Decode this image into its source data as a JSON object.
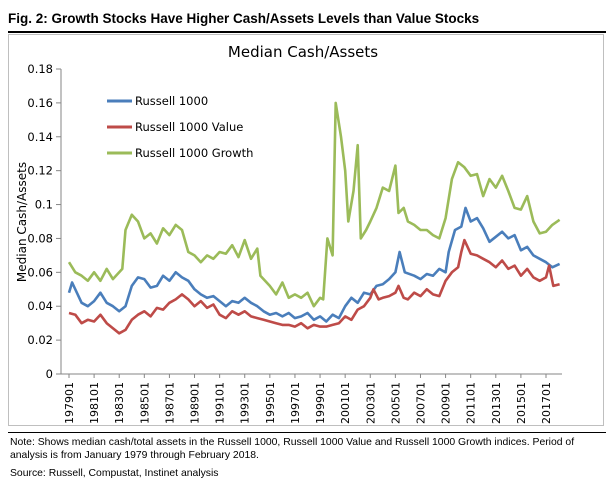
{
  "figure_title": "Fig. 2: Growth Stocks Have Higher Cash/Assets Levels than Value Stocks",
  "note": "Note: Shows median cash/total assets in the Russell 1000, Russell 1000 Value and Russell 1000 Growth indices. Period of analysis is from January 1979 through February 2018.",
  "source": "Source: Russell, Compustat, Instinet analysis",
  "chart_data": {
    "type": "line",
    "title": "Median Cash/Assets",
    "xlabel": "",
    "ylabel": "Median Cash/Assets",
    "ylim": [
      0,
      0.18
    ],
    "yticks": [
      "0",
      "0.02",
      "0.04",
      "0.06",
      "0.08",
      "0.1",
      "0.12",
      "0.14",
      "0.16",
      "0.18"
    ],
    "xticks": [
      "197901",
      "198101",
      "198301",
      "198501",
      "198701",
      "198901",
      "199101",
      "199301",
      "199501",
      "199701",
      "199901",
      "200101",
      "200301",
      "200501",
      "200701",
      "200901",
      "201101",
      "201301",
      "201501",
      "201701"
    ],
    "xrange": [
      "197901",
      "201802"
    ],
    "grid": false,
    "legend_position": "top-left",
    "series": [
      {
        "name": "Russell 1000",
        "color": "#4a7ebb",
        "points": [
          [
            "197901",
            0.048
          ],
          [
            "197904",
            0.054
          ],
          [
            "198001",
            0.042
          ],
          [
            "198007",
            0.04
          ],
          [
            "198101",
            0.043
          ],
          [
            "198107",
            0.048
          ],
          [
            "198201",
            0.042
          ],
          [
            "198207",
            0.04
          ],
          [
            "198301",
            0.037
          ],
          [
            "198307",
            0.04
          ],
          [
            "198401",
            0.052
          ],
          [
            "198407",
            0.057
          ],
          [
            "198501",
            0.056
          ],
          [
            "198507",
            0.051
          ],
          [
            "198601",
            0.052
          ],
          [
            "198607",
            0.058
          ],
          [
            "198701",
            0.055
          ],
          [
            "198707",
            0.06
          ],
          [
            "198801",
            0.057
          ],
          [
            "198807",
            0.055
          ],
          [
            "198901",
            0.05
          ],
          [
            "198907",
            0.047
          ],
          [
            "199001",
            0.045
          ],
          [
            "199007",
            0.046
          ],
          [
            "199101",
            0.043
          ],
          [
            "199107",
            0.04
          ],
          [
            "199201",
            0.043
          ],
          [
            "199207",
            0.042
          ],
          [
            "199301",
            0.045
          ],
          [
            "199307",
            0.042
          ],
          [
            "199401",
            0.04
          ],
          [
            "199407",
            0.037
          ],
          [
            "199501",
            0.035
          ],
          [
            "199507",
            0.036
          ],
          [
            "199601",
            0.034
          ],
          [
            "199607",
            0.036
          ],
          [
            "199701",
            0.033
          ],
          [
            "199707",
            0.034
          ],
          [
            "199801",
            0.036
          ],
          [
            "199807",
            0.032
          ],
          [
            "199901",
            0.034
          ],
          [
            "199907",
            0.031
          ],
          [
            "200001",
            0.035
          ],
          [
            "200007",
            0.033
          ],
          [
            "200101",
            0.04
          ],
          [
            "200107",
            0.045
          ],
          [
            "200201",
            0.042
          ],
          [
            "200207",
            0.048
          ],
          [
            "200301",
            0.047
          ],
          [
            "200307",
            0.052
          ],
          [
            "200401",
            0.053
          ],
          [
            "200407",
            0.056
          ],
          [
            "200501",
            0.06
          ],
          [
            "200505",
            0.072
          ],
          [
            "200510",
            0.06
          ],
          [
            "200607",
            0.058
          ],
          [
            "200701",
            0.056
          ],
          [
            "200707",
            0.059
          ],
          [
            "200801",
            0.058
          ],
          [
            "200807",
            0.062
          ],
          [
            "200901",
            0.06
          ],
          [
            "200904",
            0.072
          ],
          [
            "200910",
            0.085
          ],
          [
            "201004",
            0.087
          ],
          [
            "201008",
            0.098
          ],
          [
            "201101",
            0.09
          ],
          [
            "201107",
            0.092
          ],
          [
            "201201",
            0.086
          ],
          [
            "201207",
            0.078
          ],
          [
            "201301",
            0.081
          ],
          [
            "201307",
            0.084
          ],
          [
            "201401",
            0.08
          ],
          [
            "201407",
            0.082
          ],
          [
            "201501",
            0.073
          ],
          [
            "201507",
            0.075
          ],
          [
            "201601",
            0.07
          ],
          [
            "201607",
            0.068
          ],
          [
            "201701",
            0.066
          ],
          [
            "201707",
            0.063
          ],
          [
            "201802",
            0.065
          ]
        ]
      },
      {
        "name": "Russell 1000 Value",
        "color": "#be4b48",
        "points": [
          [
            "197901",
            0.036
          ],
          [
            "197907",
            0.035
          ],
          [
            "198001",
            0.03
          ],
          [
            "198007",
            0.032
          ],
          [
            "198101",
            0.031
          ],
          [
            "198107",
            0.035
          ],
          [
            "198201",
            0.03
          ],
          [
            "198207",
            0.027
          ],
          [
            "198301",
            0.024
          ],
          [
            "198307",
            0.026
          ],
          [
            "198401",
            0.032
          ],
          [
            "198407",
            0.035
          ],
          [
            "198501",
            0.037
          ],
          [
            "198507",
            0.034
          ],
          [
            "198601",
            0.039
          ],
          [
            "198607",
            0.038
          ],
          [
            "198701",
            0.042
          ],
          [
            "198707",
            0.044
          ],
          [
            "198801",
            0.047
          ],
          [
            "198807",
            0.044
          ],
          [
            "198901",
            0.04
          ],
          [
            "198907",
            0.043
          ],
          [
            "199001",
            0.039
          ],
          [
            "199007",
            0.041
          ],
          [
            "199101",
            0.035
          ],
          [
            "199107",
            0.033
          ],
          [
            "199201",
            0.037
          ],
          [
            "199207",
            0.035
          ],
          [
            "199301",
            0.037
          ],
          [
            "199307",
            0.034
          ],
          [
            "199401",
            0.033
          ],
          [
            "199407",
            0.032
          ],
          [
            "199501",
            0.031
          ],
          [
            "199507",
            0.03
          ],
          [
            "199601",
            0.029
          ],
          [
            "199607",
            0.029
          ],
          [
            "199701",
            0.028
          ],
          [
            "199707",
            0.03
          ],
          [
            "199801",
            0.027
          ],
          [
            "199807",
            0.029
          ],
          [
            "199901",
            0.028
          ],
          [
            "199907",
            0.028
          ],
          [
            "200001",
            0.029
          ],
          [
            "200007",
            0.03
          ],
          [
            "200101",
            0.034
          ],
          [
            "200107",
            0.032
          ],
          [
            "200201",
            0.038
          ],
          [
            "200207",
            0.04
          ],
          [
            "200301",
            0.045
          ],
          [
            "200304",
            0.05
          ],
          [
            "200309",
            0.044
          ],
          [
            "200401",
            0.045
          ],
          [
            "200407",
            0.046
          ],
          [
            "200501",
            0.048
          ],
          [
            "200504",
            0.052
          ],
          [
            "200509",
            0.045
          ],
          [
            "200601",
            0.044
          ],
          [
            "200607",
            0.048
          ],
          [
            "200701",
            0.046
          ],
          [
            "200707",
            0.05
          ],
          [
            "200801",
            0.047
          ],
          [
            "200807",
            0.046
          ],
          [
            "200901",
            0.055
          ],
          [
            "200907",
            0.06
          ],
          [
            "201001",
            0.063
          ],
          [
            "201004",
            0.072
          ],
          [
            "201007",
            0.079
          ],
          [
            "201101",
            0.071
          ],
          [
            "201107",
            0.07
          ],
          [
            "201201",
            0.068
          ],
          [
            "201207",
            0.066
          ],
          [
            "201301",
            0.063
          ],
          [
            "201307",
            0.067
          ],
          [
            "201401",
            0.062
          ],
          [
            "201407",
            0.064
          ],
          [
            "201501",
            0.058
          ],
          [
            "201507",
            0.062
          ],
          [
            "201601",
            0.057
          ],
          [
            "201607",
            0.055
          ],
          [
            "201701",
            0.057
          ],
          [
            "201704",
            0.064
          ],
          [
            "201708",
            0.052
          ],
          [
            "201802",
            0.053
          ]
        ]
      },
      {
        "name": "Russell 1000 Growth",
        "color": "#9bbb59",
        "points": [
          [
            "197901",
            0.066
          ],
          [
            "197907",
            0.06
          ],
          [
            "198001",
            0.058
          ],
          [
            "198007",
            0.055
          ],
          [
            "198101",
            0.06
          ],
          [
            "198107",
            0.055
          ],
          [
            "198201",
            0.062
          ],
          [
            "198207",
            0.056
          ],
          [
            "198301",
            0.06
          ],
          [
            "198304",
            0.062
          ],
          [
            "198307",
            0.085
          ],
          [
            "198401",
            0.094
          ],
          [
            "198407",
            0.09
          ],
          [
            "198501",
            0.08
          ],
          [
            "198507",
            0.083
          ],
          [
            "198601",
            0.077
          ],
          [
            "198607",
            0.086
          ],
          [
            "198701",
            0.082
          ],
          [
            "198707",
            0.088
          ],
          [
            "198801",
            0.085
          ],
          [
            "198807",
            0.072
          ],
          [
            "198901",
            0.07
          ],
          [
            "198907",
            0.066
          ],
          [
            "199001",
            0.07
          ],
          [
            "199007",
            0.068
          ],
          [
            "199101",
            0.072
          ],
          [
            "199107",
            0.071
          ],
          [
            "199201",
            0.076
          ],
          [
            "199207",
            0.069
          ],
          [
            "199301",
            0.079
          ],
          [
            "199307",
            0.068
          ],
          [
            "199401",
            0.074
          ],
          [
            "199404",
            0.058
          ],
          [
            "199501",
            0.052
          ],
          [
            "199507",
            0.047
          ],
          [
            "199601",
            0.054
          ],
          [
            "199607",
            0.045
          ],
          [
            "199701",
            0.047
          ],
          [
            "199707",
            0.045
          ],
          [
            "199801",
            0.048
          ],
          [
            "199807",
            0.04
          ],
          [
            "199901",
            0.045
          ],
          [
            "199904",
            0.044
          ],
          [
            "199908",
            0.08
          ],
          [
            "200001",
            0.07
          ],
          [
            "200004",
            0.16
          ],
          [
            "200009",
            0.14
          ],
          [
            "200101",
            0.12
          ],
          [
            "200104",
            0.09
          ],
          [
            "200109",
            0.108
          ],
          [
            "200201",
            0.135
          ],
          [
            "200204",
            0.08
          ],
          [
            "200209",
            0.085
          ],
          [
            "200301",
            0.09
          ],
          [
            "200307",
            0.098
          ],
          [
            "200401",
            0.11
          ],
          [
            "200407",
            0.108
          ],
          [
            "200501",
            0.123
          ],
          [
            "200504",
            0.095
          ],
          [
            "200509",
            0.098
          ],
          [
            "200601",
            0.09
          ],
          [
            "200607",
            0.088
          ],
          [
            "200701",
            0.085
          ],
          [
            "200707",
            0.085
          ],
          [
            "200801",
            0.082
          ],
          [
            "200807",
            0.08
          ],
          [
            "200901",
            0.092
          ],
          [
            "200907",
            0.115
          ],
          [
            "201001",
            0.125
          ],
          [
            "201007",
            0.122
          ],
          [
            "201101",
            0.117
          ],
          [
            "201107",
            0.118
          ],
          [
            "201201",
            0.105
          ],
          [
            "201207",
            0.115
          ],
          [
            "201301",
            0.11
          ],
          [
            "201307",
            0.117
          ],
          [
            "201401",
            0.108
          ],
          [
            "201407",
            0.098
          ],
          [
            "201501",
            0.097
          ],
          [
            "201507",
            0.105
          ],
          [
            "201601",
            0.09
          ],
          [
            "201607",
            0.083
          ],
          [
            "201701",
            0.084
          ],
          [
            "201707",
            0.088
          ],
          [
            "201802",
            0.091
          ]
        ]
      }
    ]
  }
}
